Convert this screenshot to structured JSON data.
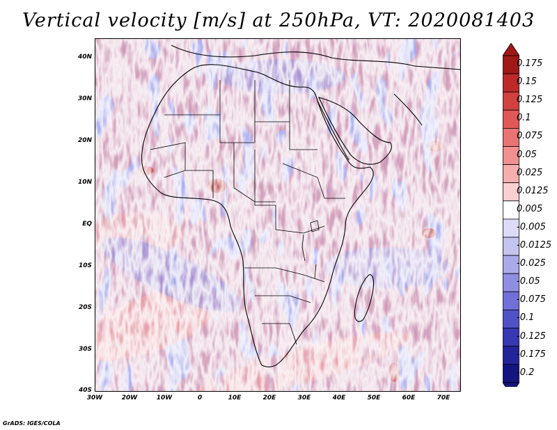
{
  "title": "Vertical velocity [m/s] at 250hPa, VT: 2020081403",
  "credit": "GrADS: IGES/COLA",
  "lat_labels": [
    "40N",
    "30N",
    "20N",
    "10N",
    "EQ",
    "10S",
    "20S",
    "30S",
    "40S"
  ],
  "lon_labels": [
    "30W",
    "20W",
    "10W",
    "0",
    "10E",
    "20E",
    "30E",
    "40E",
    "50E",
    "60E",
    "70E"
  ],
  "colorbar": {
    "labels": [
      "0.175",
      "0.15",
      "0.125",
      "0.1",
      "0.075",
      "0.05",
      "0.025",
      "0.0125",
      "0.005",
      "-0.005",
      "-0.0125",
      "-0.025",
      "-0.05",
      "-0.075",
      "-0.1",
      "-0.125",
      "-0.175",
      "-0.2"
    ],
    "colors": [
      "#a01818",
      "#be2a2a",
      "#d24040",
      "#e05858",
      "#ea7474",
      "#f29090",
      "#f6aeae",
      "#fad0d0",
      "#ffffff",
      "#dcdcf8",
      "#c4c4f0",
      "#aaaaea",
      "#8e8ee2",
      "#7070d8",
      "#5252c8",
      "#3838b2",
      "#24249a",
      "#141480"
    ],
    "top_arrow_color": "#a01818",
    "bottom_arrow_color": "#14147a"
  },
  "features": [
    "Africa",
    "Arabian Peninsula",
    "Madagascar"
  ]
}
